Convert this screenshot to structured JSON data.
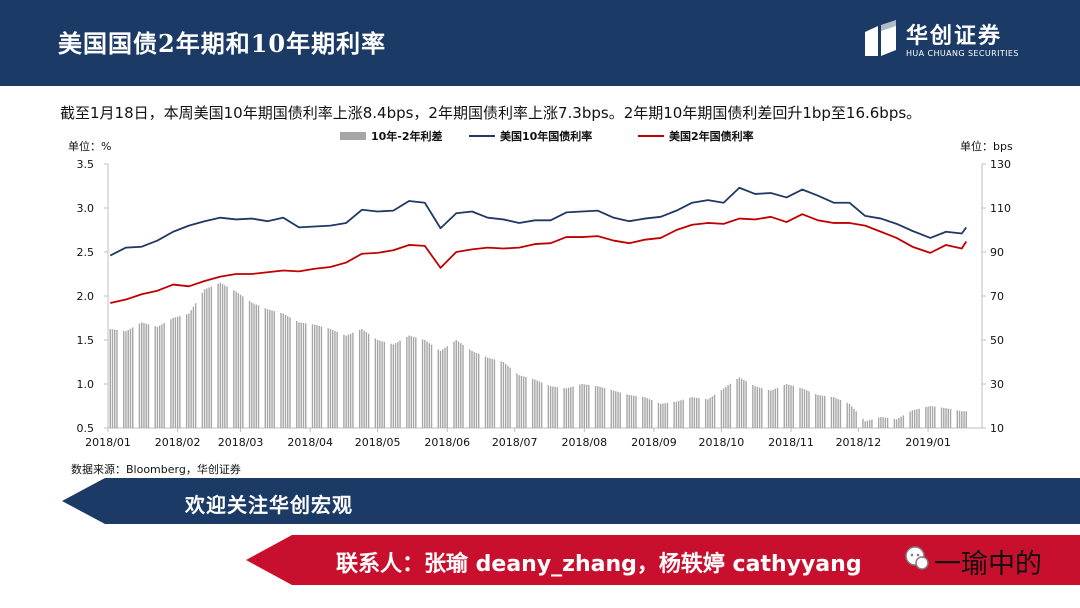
{
  "header": {
    "title": "美国国债2年期和10年期利率"
  },
  "logo": {
    "name_cn": "华创证券",
    "name_en": "HUA CHUANG SECURITIES"
  },
  "summary": "截至1月18日，本周美国10年期国债利率上涨8.4bps，2年期国债利率上涨7.3bps。2年期10年期国债利差回升1bp至16.6bps。",
  "source": "数据来源：Bloomberg，华创证券",
  "banner": {
    "follow": "欢迎关注华创宏观",
    "contact": "联系人：张瑜 deany_zhang，杨轶婷 cathyyang"
  },
  "watermark": "一瑜中的",
  "colors": {
    "header": "#1b3a66",
    "series_10y": "#1f3864",
    "series_2y": "#c00000",
    "spread": "#a6a6a6",
    "banner_red": "#c8102e"
  },
  "chart_data": {
    "type": "bar+line",
    "left_axis_unit": "单位：%",
    "right_axis_unit": "单位：bps",
    "ylim_left": [
      0.5,
      3.5
    ],
    "ylim_right": [
      10,
      130
    ],
    "yticks_left": [
      "3.5",
      "3.0",
      "2.5",
      "2.0",
      "1.5",
      "1.0",
      "0.5"
    ],
    "yticks_right": [
      "130",
      "110",
      "90",
      "70",
      "50",
      "30",
      "10"
    ],
    "xticks": [
      "2018/01",
      "2018/02",
      "2018/03",
      "2018/04",
      "2018/05",
      "2018/06",
      "2018/07",
      "2018/08",
      "2018/09",
      "2018/10",
      "2018/11",
      "2018/12",
      "2019/01"
    ],
    "legend_position": "top",
    "series": [
      {
        "name": "10年-2年利差",
        "type": "bar",
        "axis": "right",
        "points": [
          [
            "2018/01/02",
            55
          ],
          [
            "2018/01/09",
            54
          ],
          [
            "2018/01/16",
            58
          ],
          [
            "2018/01/23",
            56
          ],
          [
            "2018/01/30",
            60
          ],
          [
            "2018/02/06",
            62
          ],
          [
            "2018/02/13",
            73
          ],
          [
            "2018/02/20",
            76
          ],
          [
            "2018/02/27",
            72
          ],
          [
            "2018/03/06",
            67
          ],
          [
            "2018/03/13",
            64
          ],
          [
            "2018/03/20",
            62
          ],
          [
            "2018/03/27",
            58
          ],
          [
            "2018/04/03",
            57
          ],
          [
            "2018/04/10",
            55
          ],
          [
            "2018/04/17",
            52
          ],
          [
            "2018/04/24",
            55
          ],
          [
            "2018/05/01",
            50
          ],
          [
            "2018/05/08",
            48
          ],
          [
            "2018/05/15",
            52
          ],
          [
            "2018/05/22",
            50
          ],
          [
            "2018/05/29",
            45
          ],
          [
            "2018/06/05",
            50
          ],
          [
            "2018/06/12",
            45
          ],
          [
            "2018/06/19",
            42
          ],
          [
            "2018/06/26",
            40
          ],
          [
            "2018/07/03",
            34
          ],
          [
            "2018/07/10",
            32
          ],
          [
            "2018/07/17",
            29
          ],
          [
            "2018/07/24",
            28
          ],
          [
            "2018/07/31",
            30
          ],
          [
            "2018/08/07",
            29
          ],
          [
            "2018/08/14",
            27
          ],
          [
            "2018/08/21",
            25
          ],
          [
            "2018/08/28",
            24
          ],
          [
            "2018/09/04",
            21
          ],
          [
            "2018/09/11",
            22
          ],
          [
            "2018/09/18",
            24
          ],
          [
            "2018/09/25",
            23
          ],
          [
            "2018/10/02",
            28
          ],
          [
            "2018/10/09",
            33
          ],
          [
            "2018/10/16",
            29
          ],
          [
            "2018/10/23",
            27
          ],
          [
            "2018/10/30",
            30
          ],
          [
            "2018/11/06",
            28
          ],
          [
            "2018/11/13",
            25
          ],
          [
            "2018/11/20",
            24
          ],
          [
            "2018/11/27",
            21
          ],
          [
            "2018/12/04",
            13
          ],
          [
            "2018/12/11",
            15
          ],
          [
            "2018/12/18",
            14
          ],
          [
            "2018/12/25",
            18
          ],
          [
            "2019/01/02",
            20
          ],
          [
            "2019/01/09",
            19
          ],
          [
            "2019/01/16",
            17.6
          ]
        ]
      },
      {
        "name": "美国10年国债利率",
        "type": "line",
        "axis": "left",
        "points": [
          [
            "2018/01/02",
            2.46
          ],
          [
            "2018/01/09",
            2.55
          ],
          [
            "2018/01/16",
            2.56
          ],
          [
            "2018/01/23",
            2.63
          ],
          [
            "2018/01/30",
            2.73
          ],
          [
            "2018/02/06",
            2.8
          ],
          [
            "2018/02/13",
            2.85
          ],
          [
            "2018/02/20",
            2.89
          ],
          [
            "2018/02/27",
            2.87
          ],
          [
            "2018/03/06",
            2.88
          ],
          [
            "2018/03/13",
            2.85
          ],
          [
            "2018/03/20",
            2.89
          ],
          [
            "2018/03/27",
            2.78
          ],
          [
            "2018/04/03",
            2.79
          ],
          [
            "2018/04/10",
            2.8
          ],
          [
            "2018/04/17",
            2.83
          ],
          [
            "2018/04/24",
            2.98
          ],
          [
            "2018/05/01",
            2.96
          ],
          [
            "2018/05/08",
            2.97
          ],
          [
            "2018/05/15",
            3.08
          ],
          [
            "2018/05/22",
            3.06
          ],
          [
            "2018/05/29",
            2.77
          ],
          [
            "2018/06/05",
            2.94
          ],
          [
            "2018/06/12",
            2.96
          ],
          [
            "2018/06/19",
            2.89
          ],
          [
            "2018/06/26",
            2.87
          ],
          [
            "2018/07/03",
            2.83
          ],
          [
            "2018/07/10",
            2.86
          ],
          [
            "2018/07/17",
            2.86
          ],
          [
            "2018/07/24",
            2.95
          ],
          [
            "2018/07/31",
            2.96
          ],
          [
            "2018/08/07",
            2.97
          ],
          [
            "2018/08/14",
            2.89
          ],
          [
            "2018/08/21",
            2.85
          ],
          [
            "2018/08/28",
            2.88
          ],
          [
            "2018/09/04",
            2.9
          ],
          [
            "2018/09/11",
            2.97
          ],
          [
            "2018/09/18",
            3.06
          ],
          [
            "2018/09/25",
            3.09
          ],
          [
            "2018/10/02",
            3.06
          ],
          [
            "2018/10/09",
            3.23
          ],
          [
            "2018/10/16",
            3.16
          ],
          [
            "2018/10/23",
            3.17
          ],
          [
            "2018/10/30",
            3.12
          ],
          [
            "2018/11/06",
            3.21
          ],
          [
            "2018/11/13",
            3.14
          ],
          [
            "2018/11/20",
            3.06
          ],
          [
            "2018/11/27",
            3.06
          ],
          [
            "2018/12/04",
            2.91
          ],
          [
            "2018/12/11",
            2.88
          ],
          [
            "2018/12/18",
            2.82
          ],
          [
            "2018/12/25",
            2.74
          ],
          [
            "2019/01/02",
            2.66
          ],
          [
            "2019/01/09",
            2.73
          ],
          [
            "2019/01/16",
            2.71
          ],
          [
            "2019/01/18",
            2.78
          ]
        ]
      },
      {
        "name": "美国2年国债利率",
        "type": "line",
        "axis": "left",
        "points": [
          [
            "2018/01/02",
            1.92
          ],
          [
            "2018/01/09",
            1.96
          ],
          [
            "2018/01/16",
            2.02
          ],
          [
            "2018/01/23",
            2.06
          ],
          [
            "2018/01/30",
            2.13
          ],
          [
            "2018/02/06",
            2.11
          ],
          [
            "2018/02/13",
            2.17
          ],
          [
            "2018/02/20",
            2.22
          ],
          [
            "2018/02/27",
            2.25
          ],
          [
            "2018/03/06",
            2.25
          ],
          [
            "2018/03/13",
            2.27
          ],
          [
            "2018/03/20",
            2.29
          ],
          [
            "2018/03/27",
            2.28
          ],
          [
            "2018/04/03",
            2.31
          ],
          [
            "2018/04/10",
            2.33
          ],
          [
            "2018/04/17",
            2.38
          ],
          [
            "2018/04/24",
            2.48
          ],
          [
            "2018/05/01",
            2.49
          ],
          [
            "2018/05/08",
            2.52
          ],
          [
            "2018/05/15",
            2.58
          ],
          [
            "2018/05/22",
            2.57
          ],
          [
            "2018/05/29",
            2.32
          ],
          [
            "2018/06/05",
            2.5
          ],
          [
            "2018/06/12",
            2.53
          ],
          [
            "2018/06/19",
            2.55
          ],
          [
            "2018/06/26",
            2.54
          ],
          [
            "2018/07/03",
            2.55
          ],
          [
            "2018/07/10",
            2.59
          ],
          [
            "2018/07/17",
            2.6
          ],
          [
            "2018/07/24",
            2.67
          ],
          [
            "2018/07/31",
            2.67
          ],
          [
            "2018/08/07",
            2.68
          ],
          [
            "2018/08/14",
            2.63
          ],
          [
            "2018/08/21",
            2.6
          ],
          [
            "2018/08/28",
            2.64
          ],
          [
            "2018/09/04",
            2.66
          ],
          [
            "2018/09/11",
            2.75
          ],
          [
            "2018/09/18",
            2.81
          ],
          [
            "2018/09/25",
            2.83
          ],
          [
            "2018/10/02",
            2.82
          ],
          [
            "2018/10/09",
            2.88
          ],
          [
            "2018/10/16",
            2.87
          ],
          [
            "2018/10/23",
            2.9
          ],
          [
            "2018/10/30",
            2.84
          ],
          [
            "2018/11/06",
            2.93
          ],
          [
            "2018/11/13",
            2.86
          ],
          [
            "2018/11/20",
            2.83
          ],
          [
            "2018/11/27",
            2.83
          ],
          [
            "2018/12/04",
            2.8
          ],
          [
            "2018/12/11",
            2.73
          ],
          [
            "2018/12/18",
            2.66
          ],
          [
            "2018/12/25",
            2.56
          ],
          [
            "2019/01/02",
            2.49
          ],
          [
            "2019/01/09",
            2.58
          ],
          [
            "2019/01/16",
            2.54
          ],
          [
            "2019/01/18",
            2.62
          ]
        ]
      }
    ]
  }
}
